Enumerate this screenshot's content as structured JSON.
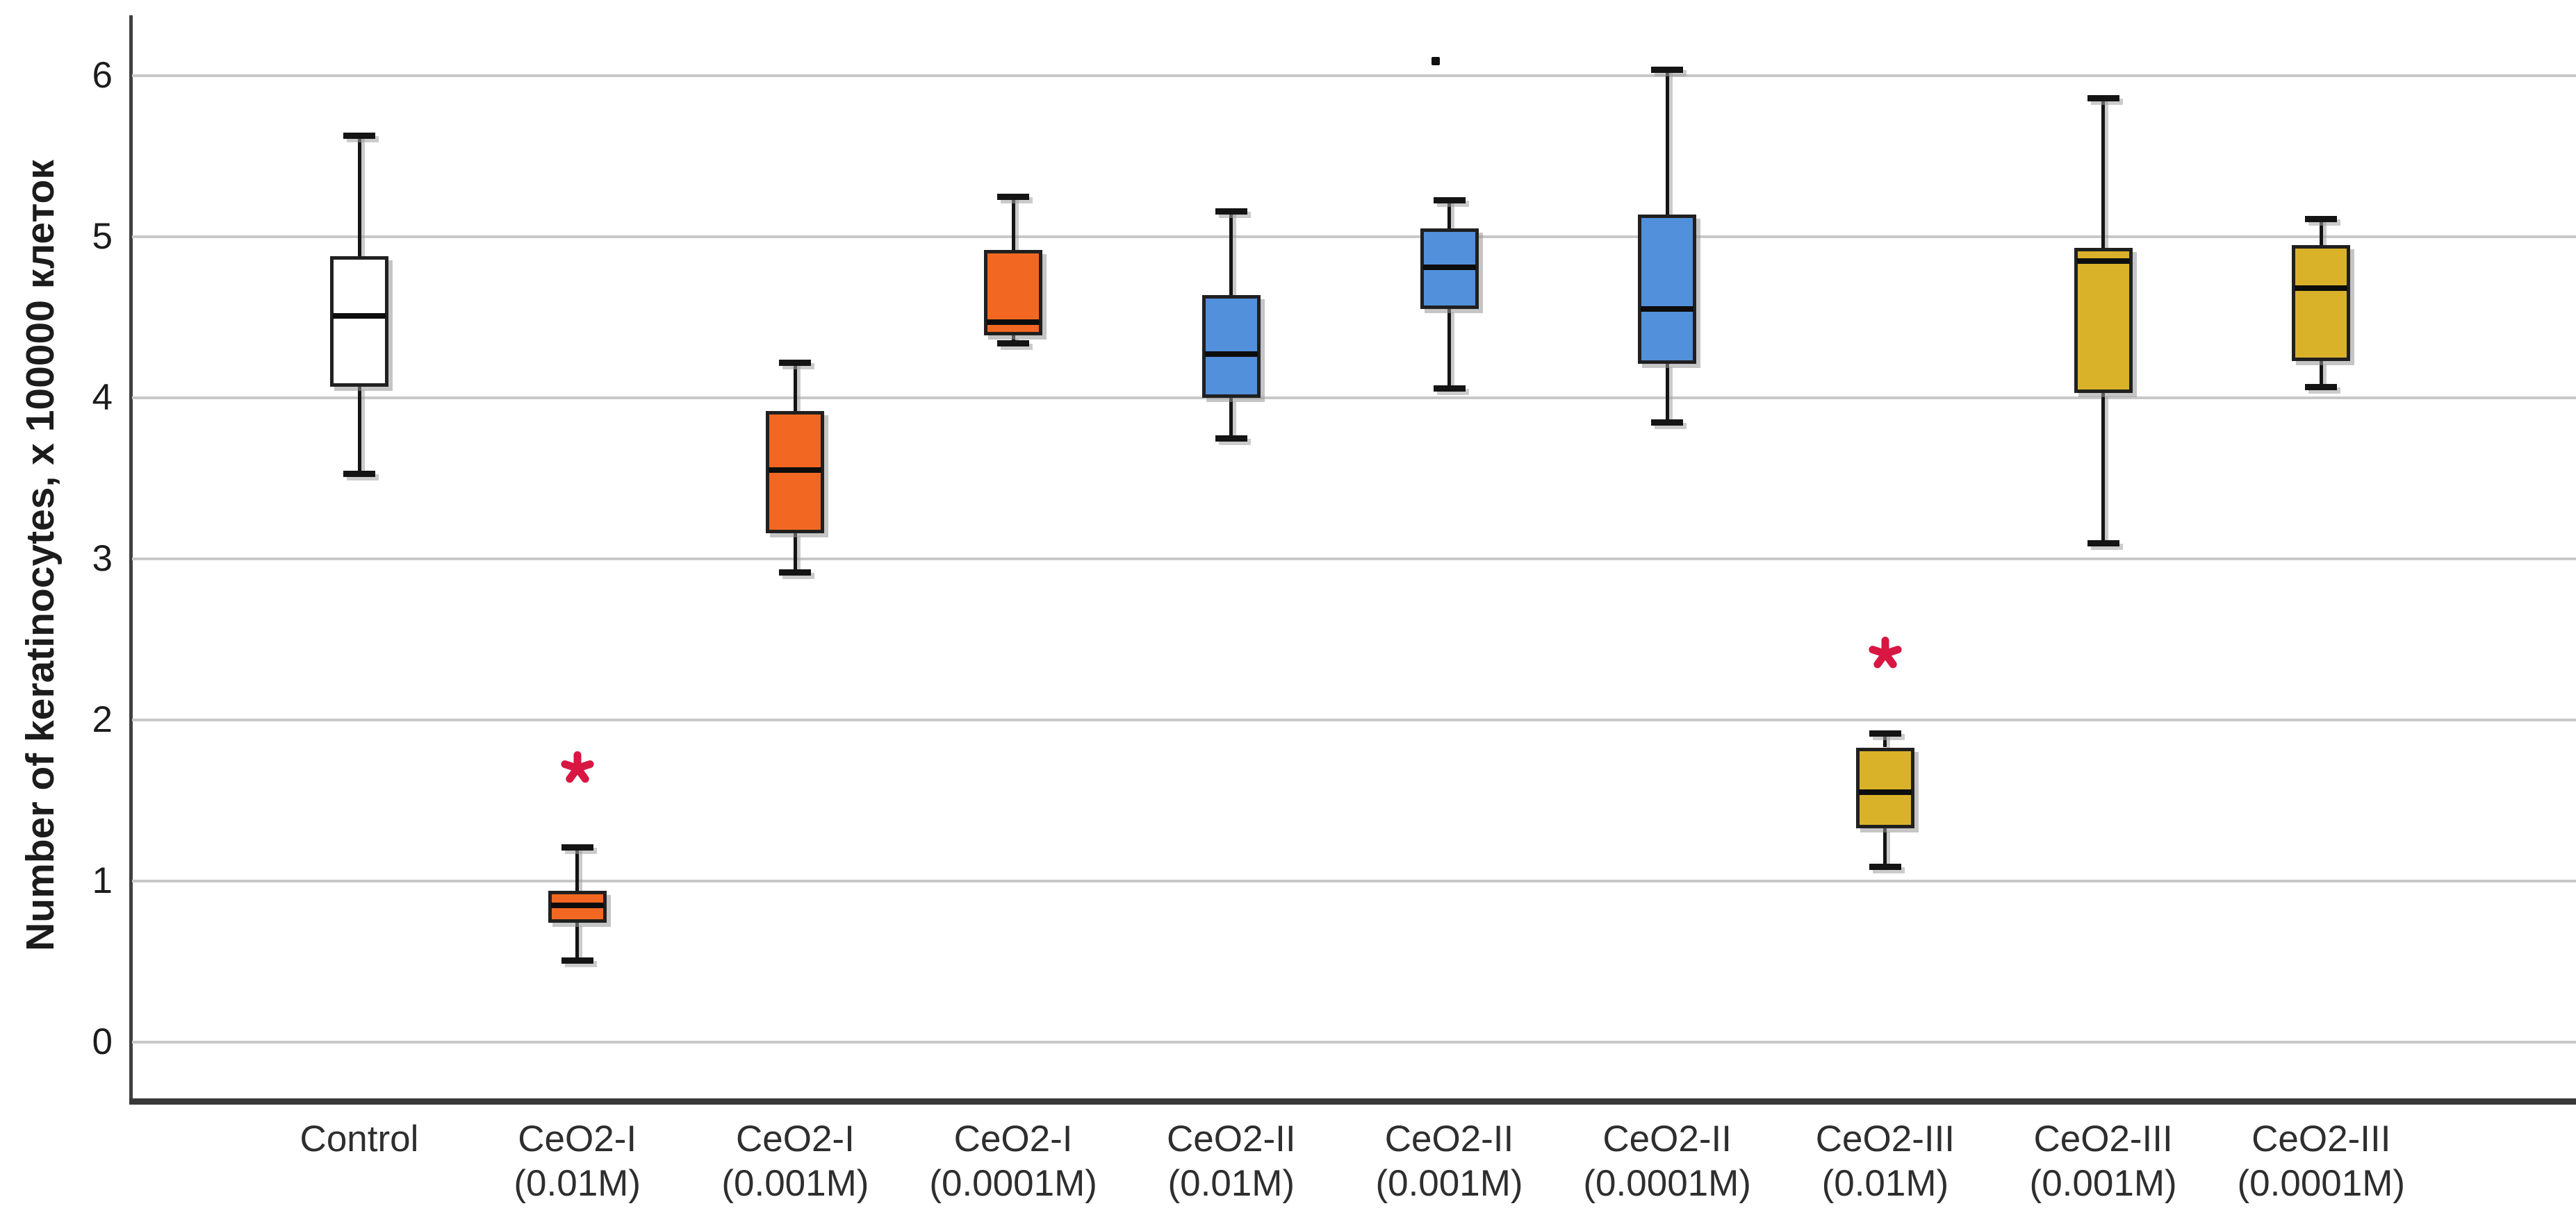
{
  "chart_data": {
    "type": "box",
    "title": "",
    "xlabel": "",
    "ylabel": "Number of keratinocytes, x 100000 клеток",
    "y_ticks": [
      0,
      1,
      2,
      3,
      4,
      5,
      6
    ],
    "ylim": [
      -0.353,
      6.362
    ],
    "grid": "horizontal-only",
    "legend": "none",
    "colors": {
      "control_fill": "#FFFFFF",
      "ceo2_i_fill": "#F26822",
      "ceo2_ii_fill": "#5290DB",
      "ceo2_iii_fill": "#D9B229",
      "box_border": "#202020",
      "median": "#0D0D0D",
      "whisker": "#141414",
      "gridline": "#C8C8C8",
      "axis": "#404040",
      "text": "#1C1C1C",
      "significance_star": "#D81743",
      "outlier": "#111111",
      "shadow": "#A0A0A0"
    },
    "series": [
      {
        "label_line1": "Control",
        "label_line2": "",
        "group": "control",
        "fill": "#FFFFFF",
        "min": 3.53,
        "q1": 4.07,
        "median": 4.51,
        "q3": 4.88,
        "max": 5.63,
        "star": null,
        "outliers": []
      },
      {
        "label_line1": "CeO2-I",
        "label_line2": "(0.01M)",
        "group": "ceo2_i",
        "fill": "#F26822",
        "min": 0.51,
        "q1": 0.74,
        "median": 0.85,
        "q3": 0.94,
        "max": 1.21,
        "star": 1.69,
        "outliers": []
      },
      {
        "label_line1": "CeO2-I",
        "label_line2": "(0.001M)",
        "group": "ceo2_i",
        "fill": "#F26822",
        "min": 2.92,
        "q1": 3.16,
        "median": 3.55,
        "q3": 3.92,
        "max": 4.22,
        "star": null,
        "outliers": []
      },
      {
        "label_line1": "CeO2-I",
        "label_line2": "(0.0001M)",
        "group": "ceo2_i",
        "fill": "#F26822",
        "min": 4.34,
        "q1": 4.39,
        "median": 4.47,
        "q3": 4.92,
        "max": 5.25,
        "star": null,
        "outliers": []
      },
      {
        "label_line1": "CeO2-II",
        "label_line2": "(0.01M)",
        "group": "ceo2_ii",
        "fill": "#5290DB",
        "min": 3.75,
        "q1": 4.0,
        "median": 4.27,
        "q3": 4.64,
        "max": 5.16,
        "star": null,
        "outliers": []
      },
      {
        "label_line1": "CeO2-II",
        "label_line2": "(0.001M)",
        "group": "ceo2_ii",
        "fill": "#5290DB",
        "min": 4.06,
        "q1": 4.55,
        "median": 4.81,
        "q3": 5.05,
        "max": 5.23,
        "star": null,
        "outliers": [
          6.09
        ]
      },
      {
        "label_line1": "CeO2-II",
        "label_line2": "(0.0001M)",
        "group": "ceo2_ii",
        "fill": "#5290DB",
        "min": 3.85,
        "q1": 4.21,
        "median": 4.55,
        "q3": 5.14,
        "max": 6.04,
        "star": null,
        "outliers": []
      },
      {
        "label_line1": "CeO2-III",
        "label_line2": "(0.01M)",
        "group": "ceo2_iii",
        "fill": "#D9B229",
        "min": 1.09,
        "q1": 1.33,
        "median": 1.55,
        "q3": 1.83,
        "max": 1.92,
        "star": 2.4,
        "outliers": []
      },
      {
        "label_line1": "CeO2-III",
        "label_line2": "(0.001M)",
        "group": "ceo2_iii",
        "fill": "#D9B229",
        "min": 3.1,
        "q1": 4.03,
        "median": 4.85,
        "q3": 4.93,
        "max": 5.86,
        "star": null,
        "outliers": []
      },
      {
        "label_line1": "CeO2-III",
        "label_line2": "(0.0001M)",
        "group": "ceo2_iii",
        "fill": "#D9B229",
        "min": 4.07,
        "q1": 4.23,
        "median": 4.68,
        "q3": 4.95,
        "max": 5.11,
        "star": null,
        "outliers": []
      }
    ]
  }
}
